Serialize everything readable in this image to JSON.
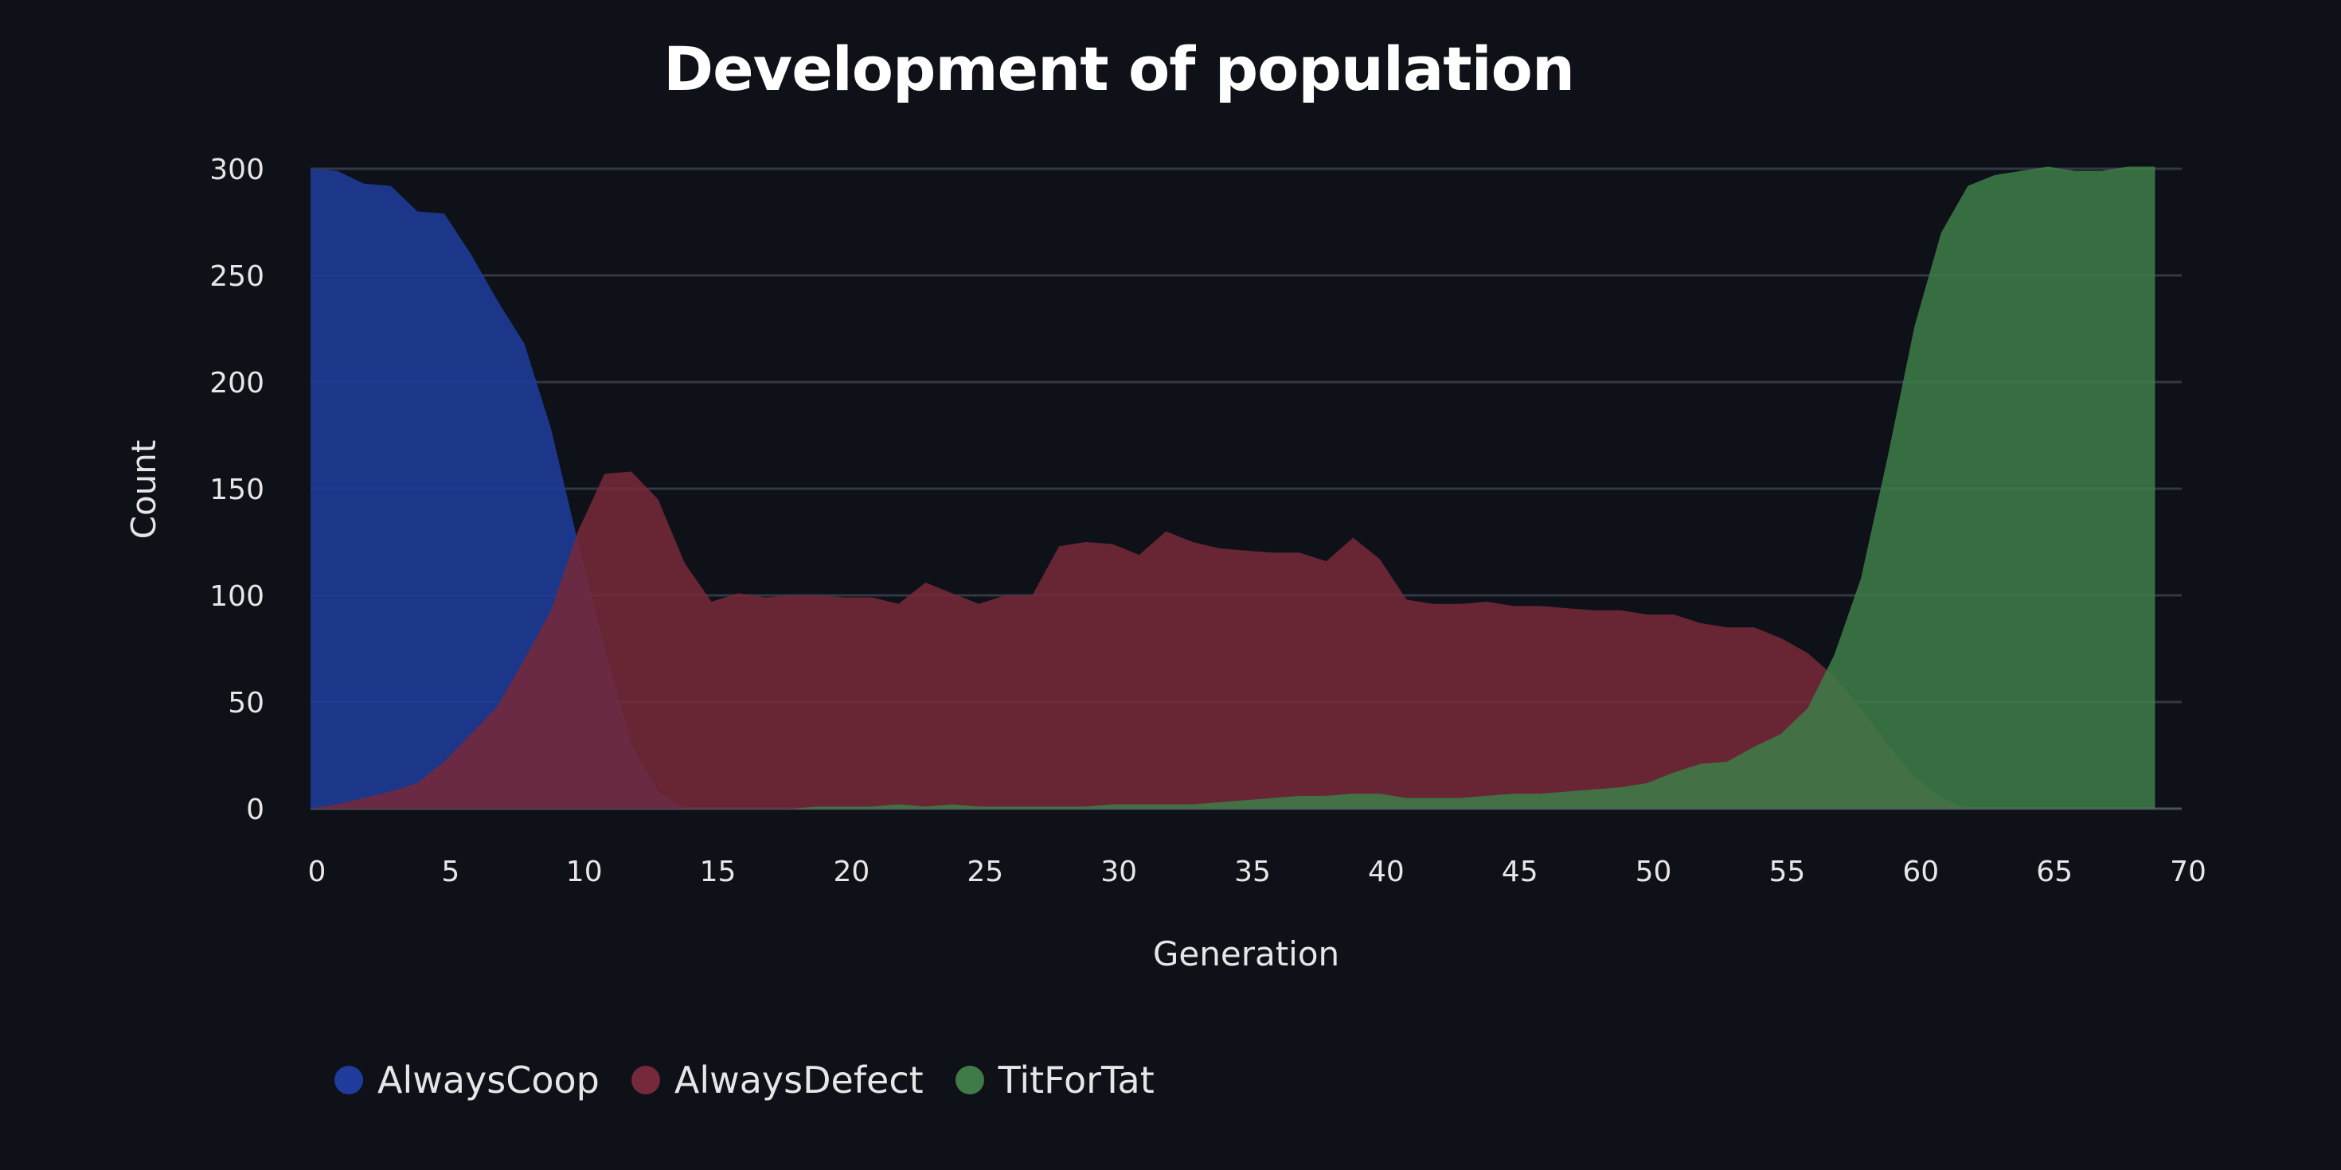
{
  "chart_data": {
    "type": "area",
    "title": "Development of population",
    "xlabel": "Generation",
    "ylabel": "Count",
    "xlim": [
      0,
      70
    ],
    "ylim": [
      0,
      300
    ],
    "xticks": [
      0,
      5,
      10,
      15,
      20,
      25,
      30,
      35,
      40,
      45,
      50,
      55,
      60,
      65,
      70
    ],
    "yticks": [
      0,
      50,
      100,
      150,
      200,
      250,
      300
    ],
    "grid": true,
    "legend_position": "bottom-left",
    "x": [
      0,
      1,
      2,
      3,
      4,
      5,
      6,
      7,
      8,
      9,
      10,
      11,
      12,
      13,
      14,
      15,
      16,
      17,
      18,
      19,
      20,
      21,
      22,
      23,
      24,
      25,
      26,
      27,
      28,
      29,
      30,
      31,
      32,
      33,
      34,
      35,
      36,
      37,
      38,
      39,
      40,
      41,
      42,
      43,
      44,
      45,
      46,
      47,
      48,
      49,
      50,
      51,
      52,
      53,
      54,
      55,
      56,
      57,
      58,
      59,
      60,
      61,
      62,
      63,
      64,
      65,
      66,
      67,
      68,
      69
    ],
    "series": [
      {
        "name": "AlwaysCoop",
        "color": "#1f3b9b",
        "values": [
          300,
          299,
          293,
          292,
          280,
          279,
          260,
          238,
          218,
          178,
          125,
          75,
          30,
          8,
          0,
          0,
          0,
          0,
          0,
          0,
          0,
          0,
          0,
          0,
          0,
          0,
          0,
          0,
          0,
          0,
          0,
          0,
          0,
          0,
          0,
          0,
          0,
          0,
          0,
          0,
          0,
          0,
          0,
          0,
          0,
          0,
          0,
          0,
          0,
          0,
          0,
          0,
          0,
          0,
          0,
          0,
          0,
          0,
          0,
          0,
          0,
          0,
          0,
          0,
          0,
          0,
          0,
          0,
          0,
          0
        ]
      },
      {
        "name": "AlwaysDefect",
        "color": "#75293a",
        "values": [
          0,
          2,
          5,
          8,
          12,
          22,
          35,
          48,
          70,
          93,
          130,
          157,
          158,
          145,
          115,
          97,
          101,
          99,
          100,
          100,
          99,
          99,
          96,
          106,
          101,
          96,
          100,
          100,
          123,
          125,
          124,
          119,
          130,
          125,
          122,
          121,
          120,
          120,
          116,
          127,
          117,
          98,
          96,
          96,
          97,
          95,
          95,
          94,
          93,
          93,
          91,
          91,
          87,
          85,
          85,
          80,
          73,
          62,
          47,
          30,
          15,
          5,
          0,
          0,
          0,
          0,
          0,
          0,
          0,
          0
        ]
      },
      {
        "name": "TitForTat",
        "color": "#3e7b48",
        "values": [
          0,
          0,
          0,
          0,
          0,
          0,
          0,
          0,
          0,
          0,
          0,
          0,
          0,
          0,
          0,
          0,
          0,
          0,
          0,
          1,
          1,
          1,
          2,
          1,
          2,
          1,
          1,
          1,
          1,
          1,
          2,
          2,
          2,
          2,
          3,
          4,
          5,
          6,
          6,
          7,
          7,
          5,
          5,
          5,
          6,
          7,
          7,
          8,
          9,
          10,
          12,
          17,
          21,
          22,
          29,
          35,
          47,
          72,
          108,
          165,
          226,
          270,
          292,
          297,
          299,
          301,
          299,
          299,
          301,
          301
        ]
      }
    ]
  }
}
